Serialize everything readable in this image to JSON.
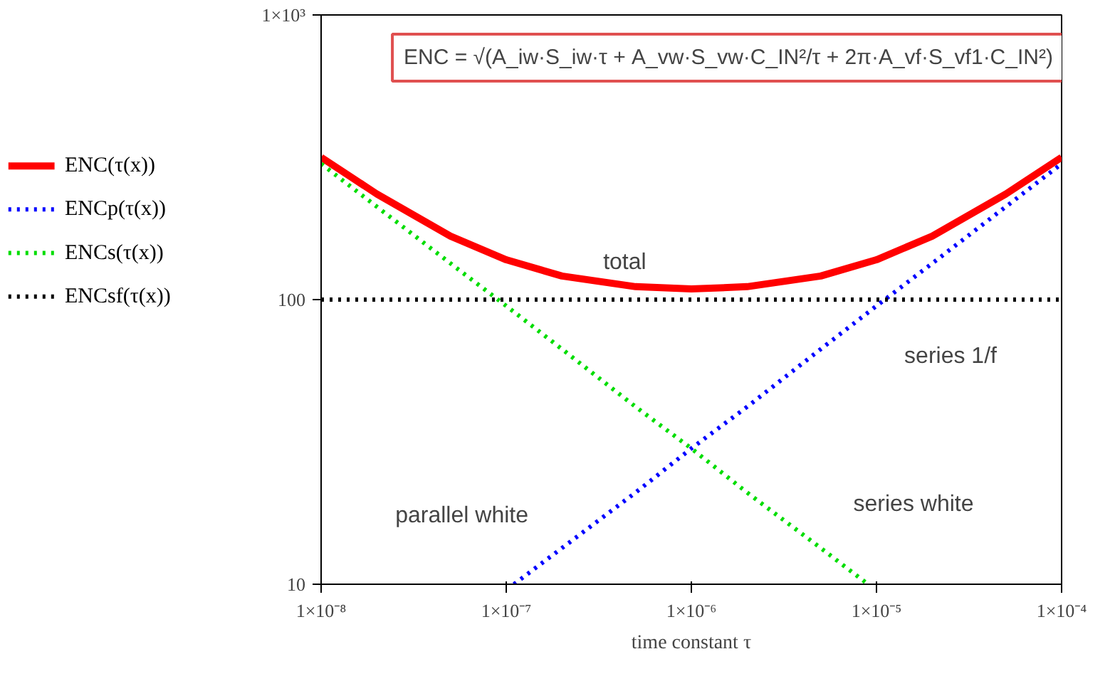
{
  "chart_data": {
    "type": "line",
    "xlabel": "time constant τ",
    "log": "xy",
    "grid": false,
    "legend": "left",
    "xlim": [
      1e-08,
      0.0001
    ],
    "ylim": [
      10,
      1000
    ],
    "xticks": [
      {
        "value": 1e-08,
        "label": "1×10⁻⁸"
      },
      {
        "value": 1e-07,
        "label": "1×10⁻⁷"
      },
      {
        "value": 1e-06,
        "label": "1×10⁻⁶"
      },
      {
        "value": 1e-05,
        "label": "1×10⁻⁵"
      },
      {
        "value": 0.0001,
        "label": "1×10⁻⁴"
      }
    ],
    "yticks": [
      10,
      100,
      {
        "value": 1000,
        "label": "1×10³"
      }
    ],
    "series": [
      {
        "name": "ENC(τ(x))",
        "color": "#ff0000",
        "line_style": "solid",
        "x": [
          1e-08,
          2e-08,
          5e-08,
          1e-07,
          2e-07,
          5e-07,
          1e-06,
          2e-06,
          5e-06,
          1e-05,
          2e-05,
          5e-05,
          0.0001
        ],
        "values": [
          316,
          235,
          167,
          138,
          121,
          111,
          109,
          111,
          121,
          138,
          167,
          235,
          316
        ]
      },
      {
        "name": "ENCp(τ(x))",
        "color": "#0000ff",
        "line_style": "dotted",
        "x": [
          1.1e-07,
          2e-07,
          5e-07,
          1e-06,
          2e-06,
          5e-06,
          1e-05,
          2e-05,
          5e-05,
          0.0001
        ],
        "values": [
          10,
          13.4,
          21,
          30,
          42,
          67,
          95,
          134,
          212,
          300
        ]
      },
      {
        "name": "ENCs(τ(x))",
        "color": "#00dd00",
        "line_style": "dotted",
        "x": [
          1e-08,
          2e-08,
          5e-08,
          1e-07,
          2e-07,
          5e-07,
          1e-06,
          2e-06,
          5e-06,
          9e-06
        ],
        "values": [
          300,
          212,
          134,
          95,
          67,
          42,
          30,
          21,
          13.4,
          10
        ]
      },
      {
        "name": "ENCsf(τ(x))",
        "color": "#000000",
        "line_style": "dotted",
        "x": [
          1e-08,
          0.0001
        ],
        "values": [
          100,
          100
        ]
      }
    ],
    "annotations": [
      "ENC = √(A_iw·S_iw·τ + A_vw·S_vw·C_IN²/τ + 2π·A_vf·S_vf1·C_IN²)",
      "total",
      "series 1/f",
      "parallel white",
      "series white"
    ]
  }
}
